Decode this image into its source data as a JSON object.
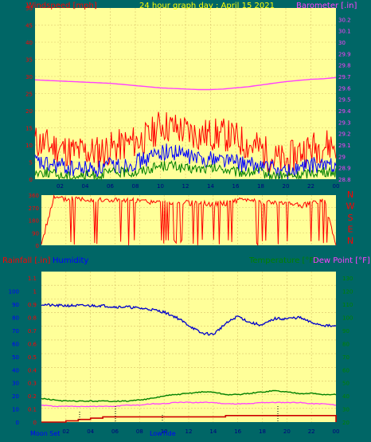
{
  "top": {
    "title": "24 hour graph day : April 15 2021",
    "left_label": "Windspeed [mph]",
    "right_label": "Barometer [.in]"
  },
  "dir": {
    "compass_labels": [
      "N",
      "W",
      "S",
      "E",
      "N"
    ]
  },
  "bottom": {
    "rain_label": "Rainfall [.in]",
    "hum_label": "Humidity",
    "temp_label": "Temperature [°F]",
    "dew_label": "Dew Point [°F]",
    "moon_set_label": "Moon Set",
    "lowtide_label": "LowTide"
  },
  "colors": {
    "plot_bg": "#ffff99",
    "panel_bg": "#006666",
    "wind_gust": "#ff0000",
    "wind_avg": "#0000ff",
    "wind_low": "#008000",
    "barometer": "#ff40ff",
    "direction": "#ff0000",
    "humidity": "#0000cc",
    "temperature": "#008000",
    "dew_point": "#ff40ff",
    "rainfall": "#cc0000",
    "left_axis": "#ff0000",
    "hum_axis": "#0000ff",
    "title": "#ffff00",
    "temp_axis": "#008000"
  },
  "chart_data": [
    {
      "type": "line",
      "title": "24 hour graph day : April 15 2021",
      "ylabel": "Windspeed [mph]",
      "y2label": "Barometer [.in]",
      "ylim": [
        0,
        50
      ],
      "y2lim": [
        28.8,
        30.3
      ],
      "x_ticks": [
        "02",
        "04",
        "06",
        "08",
        "10",
        "12",
        "14",
        "16",
        "18",
        "20",
        "22",
        "00"
      ],
      "y_ticks": [
        "0",
        "5",
        "10",
        "15",
        "20",
        "25",
        "30",
        "35",
        "40",
        "45",
        "50"
      ],
      "y2_ticks": [
        "28.8",
        "28.9",
        "29",
        "29.1",
        "29.2",
        "29.3",
        "29.4",
        "29.5",
        "29.6",
        "29.7",
        "29.8",
        "29.9",
        "30",
        "30.1",
        "30.2"
      ],
      "grid": true,
      "x": [
        0,
        1,
        2,
        3,
        4,
        5,
        6,
        7,
        8,
        9,
        10,
        11,
        12,
        13,
        14,
        15,
        16,
        17,
        18,
        19,
        20,
        21,
        22,
        23,
        24
      ],
      "series": [
        {
          "values": [
            11,
            10,
            9,
            8,
            8,
            8,
            9,
            10,
            11,
            12,
            16,
            15,
            14,
            13,
            13,
            13,
            12,
            10,
            9,
            6,
            5,
            8,
            9,
            10,
            10
          ]
        },
        {
          "values": [
            5,
            4,
            4,
            3,
            3,
            3,
            4,
            4,
            5,
            6,
            8,
            8,
            7,
            6,
            6,
            6,
            5,
            4,
            4,
            3,
            2,
            3,
            4,
            4,
            4
          ]
        },
        {
          "values": [
            2,
            2,
            1,
            1,
            1,
            1,
            2,
            2,
            2,
            3,
            4,
            4,
            3,
            3,
            3,
            3,
            2,
            2,
            2,
            1,
            1,
            1,
            2,
            2,
            2
          ]
        },
        {
          "values": [
            29.67,
            29.665,
            29.66,
            29.655,
            29.65,
            29.645,
            29.64,
            29.63,
            29.62,
            29.61,
            29.6,
            29.595,
            29.59,
            29.585,
            29.585,
            29.59,
            29.6,
            29.61,
            29.625,
            29.64,
            29.655,
            29.665,
            29.675,
            29.68,
            29.69
          ]
        }
      ]
    },
    {
      "type": "line",
      "ylim": [
        0,
        360
      ],
      "y_ticks": [
        "0",
        "90",
        "180",
        "270",
        "360"
      ],
      "grid": true,
      "x": [
        0,
        1,
        2,
        3,
        4,
        5,
        6,
        7,
        8,
        9,
        10,
        11,
        12,
        13,
        14,
        15,
        16,
        17,
        18,
        19,
        20,
        21,
        22,
        23,
        24
      ],
      "series": [
        {
          "values": [
            10,
            340,
            330,
            335,
            330,
            320,
            325,
            320,
            315,
            310,
            305,
            300,
            305,
            300,
            295,
            300,
            320,
            330,
            310,
            300,
            320,
            280,
            300,
            330,
            10
          ]
        }
      ]
    },
    {
      "type": "line",
      "ylabel": "Rainfall [.in]",
      "y_humidity_label": "Humidity",
      "y2label": "Temperature [°F]",
      "y3label": "Dew Point [°F]",
      "ylim": [
        0,
        1.15
      ],
      "y_humidity_lim": [
        0,
        100
      ],
      "y2lim": [
        20,
        135
      ],
      "rain_ticks": [
        "0",
        "0.1",
        "0.2",
        "0.3",
        "0.4",
        "0.5",
        "0.6",
        "0.7",
        "0.8",
        "0.9",
        "1",
        "1.1"
      ],
      "humidity_ticks": [
        "0",
        "10",
        "20",
        "30",
        "40",
        "50",
        "60",
        "70",
        "80",
        "90",
        "100"
      ],
      "temp_ticks": [
        "20",
        "30",
        "40",
        "50",
        "60",
        "70",
        "80",
        "90",
        "100",
        "110",
        "120",
        "130"
      ],
      "x_ticks": [
        "02",
        "04",
        "06",
        "08",
        "10",
        "12",
        "14",
        "16",
        "18",
        "20",
        "22",
        "00"
      ],
      "grid": true,
      "x": [
        0,
        1,
        2,
        3,
        4,
        5,
        6,
        7,
        8,
        9,
        10,
        11,
        12,
        13,
        14,
        15,
        16,
        17,
        18,
        19,
        20,
        21,
        22,
        23,
        24
      ],
      "series": [
        {
          "values": [
            90,
            89,
            89,
            89,
            89,
            89,
            88,
            88,
            87,
            86,
            84,
            80,
            74,
            68,
            67,
            75,
            81,
            76,
            74,
            79,
            79,
            80,
            76,
            74,
            73
          ]
        },
        {
          "values": [
            38,
            37,
            36,
            36,
            36,
            36,
            36,
            36,
            37,
            38,
            40,
            41,
            42,
            43,
            43,
            41,
            41,
            42,
            43,
            44,
            43,
            42,
            42,
            41,
            41
          ]
        },
        {
          "values": [
            33,
            32,
            32,
            32,
            32,
            32,
            32,
            33,
            33,
            34,
            34,
            35,
            35,
            35,
            35,
            34,
            34,
            34,
            35,
            35,
            35,
            35,
            34,
            34,
            33
          ]
        },
        {
          "values": [
            0,
            0,
            0.01,
            0.02,
            0.03,
            0.04,
            0.04,
            0.04,
            0.04,
            0.04,
            0.04,
            0.04,
            0.04,
            0.04,
            0.04,
            0.05,
            0.05,
            0.05,
            0.05,
            0.05,
            0.05,
            0.05,
            0.05,
            0.05,
            0.0
          ]
        }
      ]
    }
  ]
}
